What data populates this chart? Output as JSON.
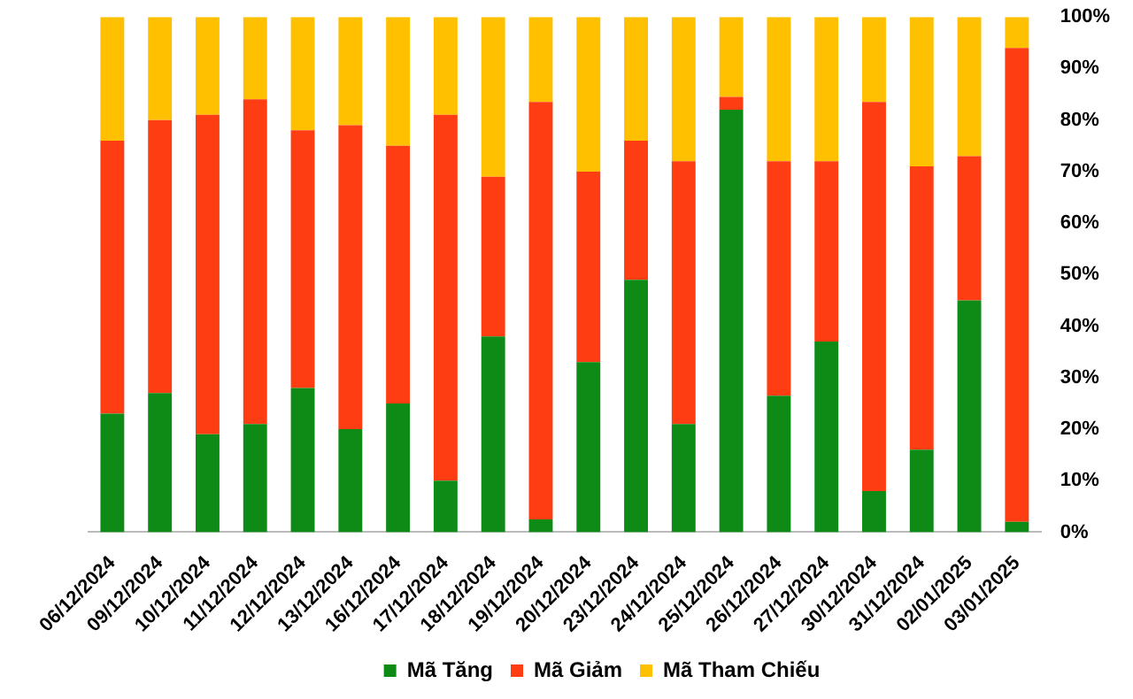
{
  "chart_data": {
    "type": "bar",
    "stacked": true,
    "legend": "bottom",
    "grid": false,
    "categories": [
      "06/12/2024",
      "09/12/2024",
      "10/12/2024",
      "11/12/2024",
      "12/12/2024",
      "13/12/2024",
      "16/12/2024",
      "17/12/2024",
      "18/12/2024",
      "19/12/2024",
      "20/12/2024",
      "23/12/2024",
      "24/12/2024",
      "25/12/2024",
      "26/12/2024",
      "27/12/2024",
      "30/12/2024",
      "31/12/2024",
      "02/01/2025",
      "03/01/2025"
    ],
    "series": [
      {
        "name": "Mã Tăng",
        "color": "#0e8a16",
        "values": [
          23,
          27,
          19,
          21,
          28,
          20,
          25,
          10,
          38,
          2.5,
          33,
          49,
          21,
          82,
          26.5,
          37,
          8,
          16,
          45,
          2
        ]
      },
      {
        "name": "Mã Giảm",
        "color": "#ff3d12",
        "values": [
          53,
          53,
          62,
          63,
          50,
          59,
          50,
          71,
          31,
          81,
          37,
          27,
          51,
          2.5,
          45.5,
          35,
          75.5,
          55,
          28,
          92
        ]
      },
      {
        "name": "Mã Tham Chiếu",
        "color": "#ffc000",
        "values": [
          24,
          20,
          19,
          16,
          22,
          21,
          25,
          19,
          31,
          16.5,
          30,
          24,
          28,
          15.5,
          28,
          28,
          16.5,
          29,
          27,
          6
        ]
      }
    ],
    "ylim": [
      0,
      100
    ],
    "yticks": [
      {
        "value": 0,
        "label": "0%"
      },
      {
        "value": 10,
        "label": "10%"
      },
      {
        "value": 20,
        "label": "20%"
      },
      {
        "value": 30,
        "label": "30%"
      },
      {
        "value": 40,
        "label": "40%"
      },
      {
        "value": 50,
        "label": "50%"
      },
      {
        "value": 60,
        "label": "60%"
      },
      {
        "value": 70,
        "label": "70%"
      },
      {
        "value": 80,
        "label": "80%"
      },
      {
        "value": 90,
        "label": "90%"
      },
      {
        "value": 100,
        "label": "100%"
      }
    ]
  }
}
